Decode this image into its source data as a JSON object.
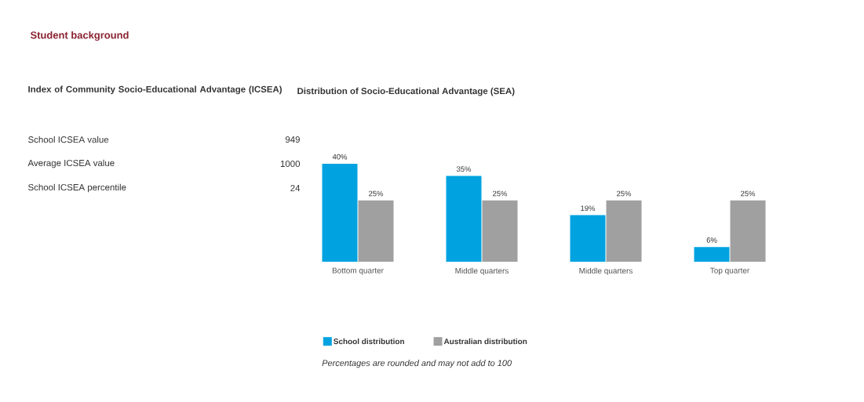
{
  "chart_data": [
    {
      "type": "other",
      "title": "Student background",
      "subtitle": "Index of Community Socio-Educational Advantage (ICSEA)",
      "categories": [
        "School ICSEA value",
        "Average ICSEA value",
        "School ICSEA percentile"
      ],
      "values": [
        949,
        1000,
        24
      ],
      "data_labels": true
    },
    {
      "type": "bar",
      "title": "Distribution of Socio-Educational Advantage (SEA)",
      "categories": [
        "Bottom quarter",
        "Middle quarters",
        "Middle quarters",
        "Top quarter"
      ],
      "series": [
        {
          "name": "School distribution",
          "color": "#00a3e0",
          "values": [
            40,
            35,
            19,
            6
          ],
          "value_labels": [
            "40%",
            "35%",
            "19%",
            "6%"
          ]
        },
        {
          "name": "Australian distribution",
          "color": "#a0a0a0",
          "values": [
            25,
            25,
            25,
            25
          ],
          "value_labels": [
            "25%",
            "25%",
            "25%",
            "25%"
          ]
        }
      ],
      "legend": "bottom",
      "annotations": [
        "Percentages are rounded and may not add to 100"
      ]
    }
  ]
}
